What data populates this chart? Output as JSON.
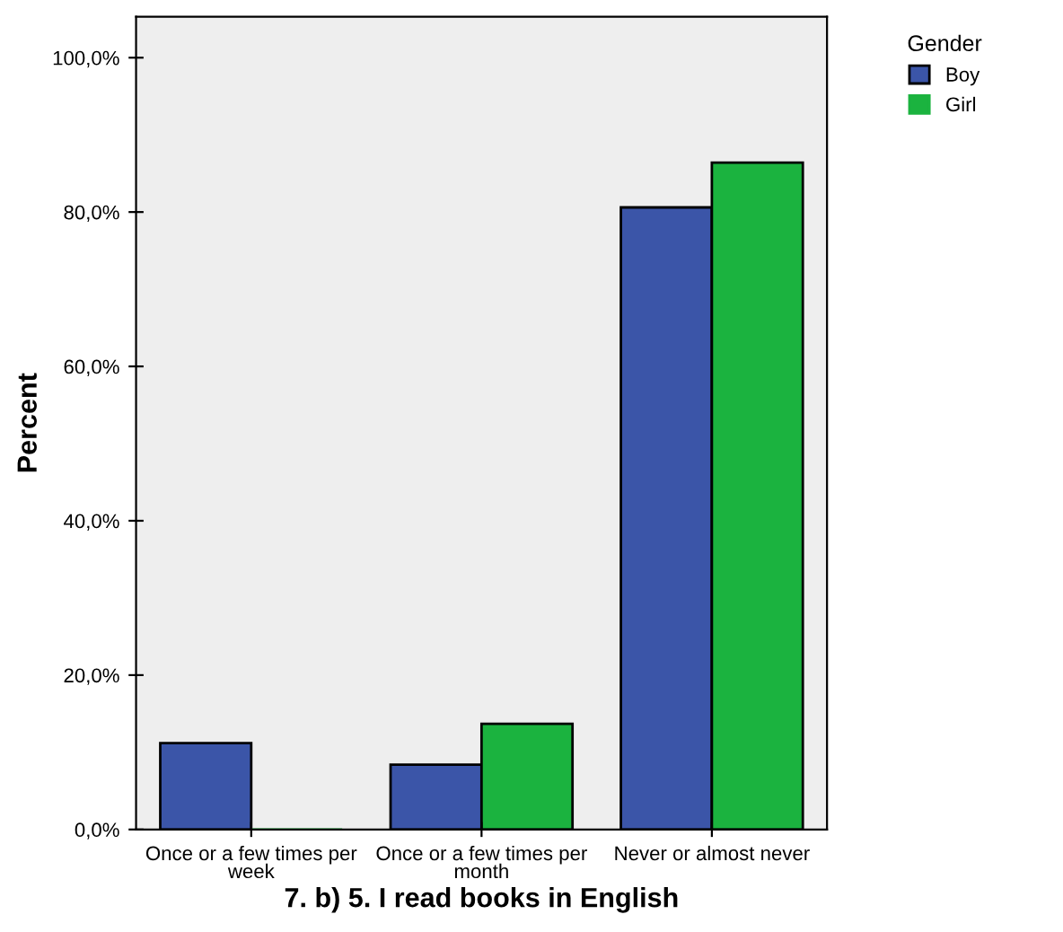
{
  "chart_data": {
    "type": "bar",
    "xlabel": "7. b) 5. I read books in English",
    "ylabel": "Percent",
    "legend_title": "Gender",
    "categories": [
      "Once or a few times per week",
      "Once or a few times per month",
      "Never or almost never"
    ],
    "series": [
      {
        "name": "Boy",
        "color": "#3b55a8",
        "values": [
          11.2,
          8.4,
          80.6
        ]
      },
      {
        "name": "Girl",
        "color": "#1bb33f",
        "values": [
          0,
          13.7,
          86.4
        ]
      }
    ],
    "ylim": [
      0,
      105.3
    ],
    "yticks": [
      {
        "value": 0,
        "label": "0,0%"
      },
      {
        "value": 20,
        "label": "20,0%"
      },
      {
        "value": 40,
        "label": "40,0%"
      },
      {
        "value": 60,
        "label": "60,0%"
      },
      {
        "value": 80,
        "label": "80,0%"
      },
      {
        "value": 100,
        "label": "100,0%"
      }
    ],
    "legend": "top right",
    "grid": false
  }
}
